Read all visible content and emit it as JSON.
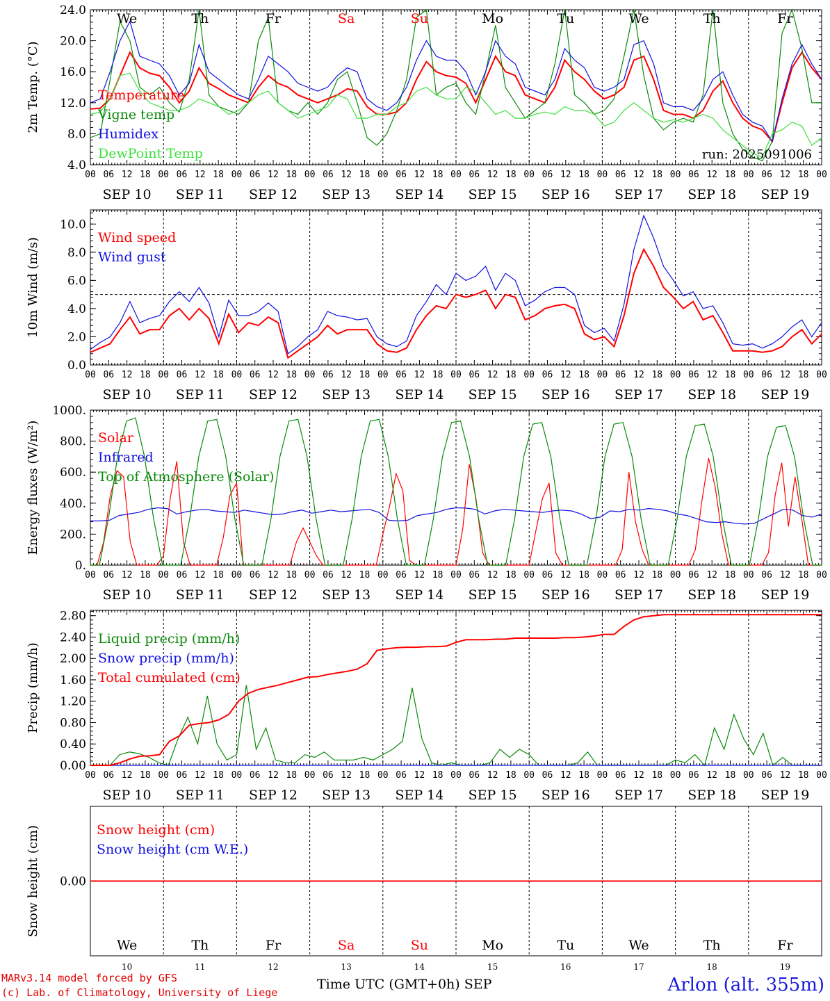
{
  "chart_data": [
    {
      "type": "line",
      "ylabel": "2m Temp. (°C)",
      "ylim": [
        4,
        24
      ],
      "yticks": [
        "4.0",
        "8.0",
        "12.0",
        "16.0",
        "20.0",
        "24.0"
      ],
      "annotation": "run: 2025091006",
      "series": [
        {
          "name": "Temperature",
          "color": "#ff0000",
          "values": [
            11.2,
            11.3,
            12.5,
            15.5,
            18.5,
            16.5,
            15.8,
            15.5,
            14.0,
            12.0,
            13.5,
            16.5,
            14.5,
            13.8,
            13.0,
            12.5,
            12.0,
            14.0,
            15.5,
            14.5,
            14.0,
            13.0,
            12.5,
            12.0,
            12.5,
            13.0,
            13.8,
            13.5,
            11.5,
            10.5,
            10.5,
            10.8,
            12.0,
            15.0,
            17.3,
            16.0,
            15.5,
            15.3,
            14.5,
            12.0,
            15.0,
            18.0,
            16.0,
            15.5,
            13.0,
            12.5,
            12.0,
            14.0,
            17.5,
            16.0,
            15.0,
            13.5,
            12.5,
            13.0,
            14.0,
            17.5,
            18.0,
            15.0,
            11.0,
            10.5,
            10.5,
            10.0,
            11.0,
            13.5,
            14.8,
            12.0,
            10.0,
            9.0,
            8.5,
            7.0,
            12.0,
            16.5,
            18.5,
            16.5,
            15.0
          ]
        },
        {
          "name": "Vigne temp",
          "color": "#0a8a0a",
          "values": [
            7.5,
            8.0,
            15.0,
            22.5,
            20.0,
            14.0,
            13.0,
            14.0,
            12.0,
            10.8,
            15.0,
            24.0,
            13.0,
            11.5,
            11.0,
            10.5,
            12.0,
            20.0,
            23.0,
            12.0,
            11.0,
            10.5,
            12.0,
            10.5,
            12.0,
            15.0,
            16.0,
            12.0,
            7.5,
            6.5,
            8.0,
            11.0,
            15.0,
            23.0,
            24.0,
            13.0,
            14.0,
            14.5,
            12.0,
            10.5,
            16.0,
            22.0,
            14.0,
            12.0,
            10.0,
            11.0,
            12.0,
            17.0,
            24.0,
            13.0,
            12.0,
            10.5,
            11.0,
            12.5,
            18.0,
            24.0,
            15.5,
            10.0,
            8.5,
            9.5,
            10.0,
            9.5,
            13.0,
            24.0,
            12.0,
            8.0,
            6.0,
            5.0,
            4.5,
            7.0,
            21.0,
            24.0,
            19.0,
            12.0,
            12.0
          ]
        },
        {
          "name": "Humidex",
          "color": "#1010e0",
          "values": [
            12.0,
            12.5,
            16.0,
            20.0,
            22.5,
            18.0,
            17.5,
            17.0,
            15.5,
            13.0,
            14.5,
            19.5,
            16.0,
            15.0,
            14.0,
            13.0,
            12.5,
            15.0,
            18.0,
            17.0,
            16.0,
            14.5,
            14.0,
            13.5,
            14.0,
            15.5,
            16.5,
            16.0,
            12.5,
            11.5,
            11.0,
            12.0,
            14.0,
            17.5,
            20.0,
            18.0,
            17.5,
            17.5,
            16.0,
            13.0,
            16.0,
            20.0,
            18.0,
            17.0,
            14.0,
            13.5,
            13.0,
            15.0,
            19.0,
            17.5,
            16.5,
            14.0,
            13.5,
            14.0,
            15.0,
            19.5,
            20.0,
            17.0,
            12.0,
            11.5,
            11.5,
            11.0,
            12.5,
            15.0,
            16.0,
            13.0,
            10.5,
            9.5,
            9.0,
            7.0,
            12.5,
            17.0,
            19.5,
            17.0,
            15.0
          ]
        },
        {
          "name": "DewPoint Temp",
          "color": "#3ee03e",
          "values": [
            10.5,
            10.8,
            12.5,
            15.5,
            15.8,
            13.5,
            12.0,
            11.5,
            11.0,
            11.0,
            11.5,
            12.5,
            12.0,
            11.5,
            10.5,
            11.0,
            12.0,
            13.0,
            13.5,
            12.0,
            11.0,
            10.0,
            10.5,
            11.0,
            11.5,
            13.0,
            12.5,
            10.0,
            10.0,
            10.5,
            10.5,
            11.5,
            12.0,
            13.5,
            14.0,
            13.0,
            12.5,
            12.5,
            14.0,
            13.5,
            12.0,
            10.5,
            11.0,
            10.0,
            10.0,
            10.5,
            10.8,
            10.5,
            11.5,
            11.0,
            11.0,
            10.5,
            9.0,
            9.5,
            11.0,
            12.0,
            11.0,
            10.0,
            9.5,
            9.8,
            9.5,
            10.0,
            10.5,
            10.0,
            8.5,
            7.5,
            6.5,
            5.5,
            5.0,
            8.0,
            8.5,
            9.5,
            9.0,
            6.5,
            7.5
          ]
        }
      ]
    },
    {
      "type": "line",
      "ylabel": "10m Wind (m/s)",
      "ylim": [
        0,
        11
      ],
      "yticks": [
        "0.0",
        "2.0",
        "4.0",
        "6.0",
        "8.0",
        "10.0"
      ],
      "reference_line": 5.0,
      "series": [
        {
          "name": "Wind speed",
          "color": "#ff0000",
          "values": [
            0.9,
            1.2,
            1.5,
            2.5,
            3.4,
            2.2,
            2.5,
            2.5,
            3.5,
            4.0,
            3.2,
            4.0,
            3.3,
            1.5,
            3.6,
            2.3,
            3.0,
            2.8,
            3.4,
            3.0,
            0.5,
            1.0,
            1.5,
            2.0,
            2.8,
            2.2,
            2.5,
            2.5,
            2.5,
            1.5,
            1.0,
            0.9,
            1.2,
            2.5,
            3.5,
            4.2,
            4.0,
            5.0,
            4.8,
            5.0,
            5.3,
            4.0,
            5.0,
            4.8,
            3.2,
            3.5,
            4.0,
            4.2,
            4.3,
            4.0,
            2.2,
            1.8,
            2.0,
            1.3,
            3.5,
            6.5,
            8.2,
            7.0,
            5.5,
            4.8,
            4.0,
            4.5,
            3.2,
            3.5,
            2.3,
            1.0,
            1.0,
            1.0,
            0.9,
            1.0,
            1.3,
            2.0,
            2.5,
            1.5,
            2.2
          ]
        },
        {
          "name": "Wind gust",
          "color": "#1010e0",
          "values": [
            1.1,
            1.6,
            2.0,
            3.0,
            4.5,
            3.0,
            3.3,
            3.5,
            4.5,
            5.2,
            4.5,
            5.5,
            4.4,
            2.0,
            4.6,
            3.5,
            3.5,
            3.8,
            4.4,
            3.8,
            0.8,
            1.3,
            2.0,
            2.5,
            3.8,
            3.5,
            3.4,
            3.2,
            3.3,
            2.0,
            1.5,
            1.3,
            1.7,
            3.5,
            4.5,
            5.7,
            5.0,
            6.5,
            6.0,
            6.3,
            7.0,
            5.3,
            6.5,
            6.0,
            4.2,
            4.6,
            5.2,
            5.5,
            5.5,
            5.0,
            2.8,
            2.3,
            2.6,
            1.7,
            4.3,
            8.2,
            10.6,
            9.0,
            7.0,
            6.0,
            4.9,
            5.2,
            4.0,
            4.2,
            3.0,
            1.5,
            1.4,
            1.5,
            1.2,
            1.5,
            2.0,
            2.7,
            3.2,
            2.0,
            3.0
          ]
        }
      ]
    },
    {
      "type": "line",
      "ylabel": "Energy fluxes (W/m²)",
      "ylim": [
        0,
        1000
      ],
      "yticks": [
        "0.",
        "200.",
        "400.",
        "600.",
        "800.",
        "1000."
      ],
      "series": [
        {
          "name": "Solar",
          "color": "#ff0000",
          "values": [
            0,
            0,
            150,
            450,
            610,
            570,
            150,
            0,
            0,
            0,
            0,
            60,
            430,
            670,
            150,
            0,
            0,
            0,
            0,
            0,
            180,
            450,
            530,
            0,
            0,
            0,
            0,
            0,
            0,
            0,
            0,
            150,
            240,
            150,
            60,
            0,
            0,
            0,
            0,
            0,
            0,
            0,
            0,
            0,
            200,
            380,
            590,
            480,
            30,
            0,
            0,
            0,
            0,
            0,
            0,
            0,
            230,
            650,
            430,
            80,
            0,
            0,
            0,
            0,
            0,
            0,
            0,
            220,
            430,
            530,
            80,
            0,
            0,
            0,
            0,
            0,
            0,
            0,
            0,
            0,
            100,
            600,
            280,
            100,
            0,
            0,
            0,
            0,
            0,
            0,
            0,
            100,
            420,
            690,
            500,
            200,
            0,
            0,
            0,
            0,
            0,
            0,
            80,
            450,
            660,
            250,
            570,
            300,
            0,
            0,
            0
          ]
        },
        {
          "name": "Infrared",
          "color": "#1010e0",
          "values": [
            285,
            285,
            290,
            320,
            330,
            340,
            360,
            370,
            365,
            330,
            345,
            355,
            360,
            350,
            345,
            340,
            355,
            345,
            335,
            325,
            330,
            345,
            355,
            335,
            345,
            355,
            345,
            350,
            355,
            360,
            340,
            290,
            285,
            290,
            320,
            330,
            340,
            360,
            370,
            368,
            360,
            330,
            350,
            360,
            355,
            350,
            345,
            340,
            350,
            355,
            350,
            330,
            300,
            310,
            350,
            345,
            360,
            355,
            365,
            360,
            350,
            330,
            320,
            300,
            280,
            275,
            280,
            270,
            265,
            270,
            300,
            330,
            360,
            355,
            320,
            310,
            330
          ]
        },
        {
          "name": "Top of Atmosphere (Solar)",
          "color": "#0a8a0a",
          "values": [
            0,
            0,
            300,
            700,
            930,
            950,
            700,
            300,
            0,
            0,
            0,
            300,
            700,
            930,
            940,
            700,
            300,
            0,
            0,
            0,
            300,
            700,
            930,
            940,
            700,
            300,
            0,
            0,
            0,
            300,
            700,
            930,
            940,
            700,
            300,
            0,
            0,
            0,
            300,
            700,
            920,
            930,
            700,
            300,
            0,
            0,
            0,
            300,
            700,
            910,
            920,
            700,
            300,
            0,
            0,
            0,
            300,
            700,
            910,
            920,
            700,
            300,
            0,
            0,
            0,
            300,
            700,
            900,
            910,
            700,
            300,
            0,
            0,
            0,
            300,
            700,
            890,
            900,
            700,
            300,
            0,
            0
          ]
        }
      ]
    },
    {
      "type": "line",
      "ylabel": "Precip (mm/h)",
      "ylim": [
        0,
        2.9
      ],
      "yticks": [
        "0.00",
        "0.40",
        "0.80",
        "1.20",
        "1.60",
        "2.00",
        "2.40",
        "2.80"
      ],
      "series": [
        {
          "name": "Liquid precip (mm/h)",
          "color": "#0a8a0a",
          "values": [
            0,
            0,
            0,
            0.2,
            0.25,
            0.22,
            0.15,
            0.05,
            0,
            0.5,
            0.9,
            0.4,
            1.3,
            0.4,
            0.1,
            0.2,
            1.5,
            0.3,
            0.7,
            0.1,
            0.05,
            0.05,
            0.2,
            0.15,
            0.25,
            0.1,
            0.1,
            0.1,
            0.15,
            0.1,
            0.2,
            0.3,
            0.45,
            1.45,
            0.5,
            0.05,
            0,
            0.05,
            0,
            0,
            0,
            0.05,
            0.3,
            0.15,
            0.3,
            0.2,
            0,
            0,
            0,
            0,
            0.05,
            0.25,
            0,
            0,
            0,
            0,
            0,
            0,
            0,
            0,
            0.1,
            0.05,
            0.2,
            0,
            0.7,
            0.3,
            0.95,
            0.5,
            0.2,
            0.6,
            0,
            0.15,
            0,
            0,
            0,
            0
          ]
        },
        {
          "name": "Snow precip (mm/h)",
          "color": "#1010e0",
          "values": [
            0,
            0,
            0,
            0,
            0,
            0,
            0,
            0,
            0,
            0,
            0,
            0,
            0,
            0,
            0,
            0,
            0,
            0,
            0,
            0
          ]
        },
        {
          "name": "Total cumulated (cm)",
          "color": "#ff0000",
          "values": [
            0,
            0,
            0,
            0.05,
            0.12,
            0.17,
            0.18,
            0.2,
            0.45,
            0.55,
            0.75,
            0.78,
            0.8,
            0.85,
            0.95,
            1.2,
            1.35,
            1.42,
            1.46,
            1.5,
            1.55,
            1.6,
            1.65,
            1.66,
            1.7,
            1.73,
            1.76,
            1.8,
            1.9,
            2.15,
            2.18,
            2.2,
            2.21,
            2.21,
            2.22,
            2.22,
            2.23,
            2.3,
            2.35,
            2.35,
            2.35,
            2.36,
            2.36,
            2.38,
            2.38,
            2.38,
            2.38,
            2.38,
            2.39,
            2.39,
            2.4,
            2.42,
            2.45,
            2.45,
            2.6,
            2.72,
            2.78,
            2.8,
            2.82,
            2.82,
            2.82,
            2.82,
            2.82,
            2.82,
            2.82,
            2.82,
            2.82,
            2.82,
            2.82,
            2.82,
            2.82,
            2.82,
            2.82,
            2.82,
            2.82
          ]
        }
      ]
    },
    {
      "type": "line",
      "ylabel": "Snow height (cm)",
      "ylim": [
        -1,
        1
      ],
      "yticks": [
        "0.00"
      ],
      "series": [
        {
          "name": "Snow height (cm)",
          "color": "#ff0000",
          "values": [
            0,
            0
          ]
        },
        {
          "name": "Snow height (cm W.E.)",
          "color": "#1010e0",
          "values": []
        }
      ]
    }
  ],
  "x_axis": {
    "hour_ticks": [
      "00",
      "06",
      "12",
      "18"
    ],
    "final_tick": "00",
    "dates": [
      "SEP 10",
      "SEP 11",
      "SEP 12",
      "SEP 13",
      "SEP 14",
      "SEP 15",
      "SEP 16",
      "SEP 17",
      "SEP 18",
      "SEP 19"
    ],
    "day_numbers": [
      "10",
      "11",
      "12",
      "13",
      "14",
      "15",
      "16",
      "17",
      "18",
      "19"
    ],
    "weekdays": [
      "We",
      "Th",
      "Fr",
      "Sa",
      "Su",
      "Mo",
      "Tu",
      "We",
      "Th",
      "Fr"
    ],
    "weekend_color": "#ff0000",
    "weekday_color": "#000000",
    "title": "Time UTC (GMT+0h)",
    "month": "SEP"
  },
  "footer": {
    "credit_line1": "MARv3.14 model forced by GFS",
    "credit_line2": "(c) Lab. of Climatology, University of Liege",
    "location": "Arlon (alt. 355m)"
  }
}
